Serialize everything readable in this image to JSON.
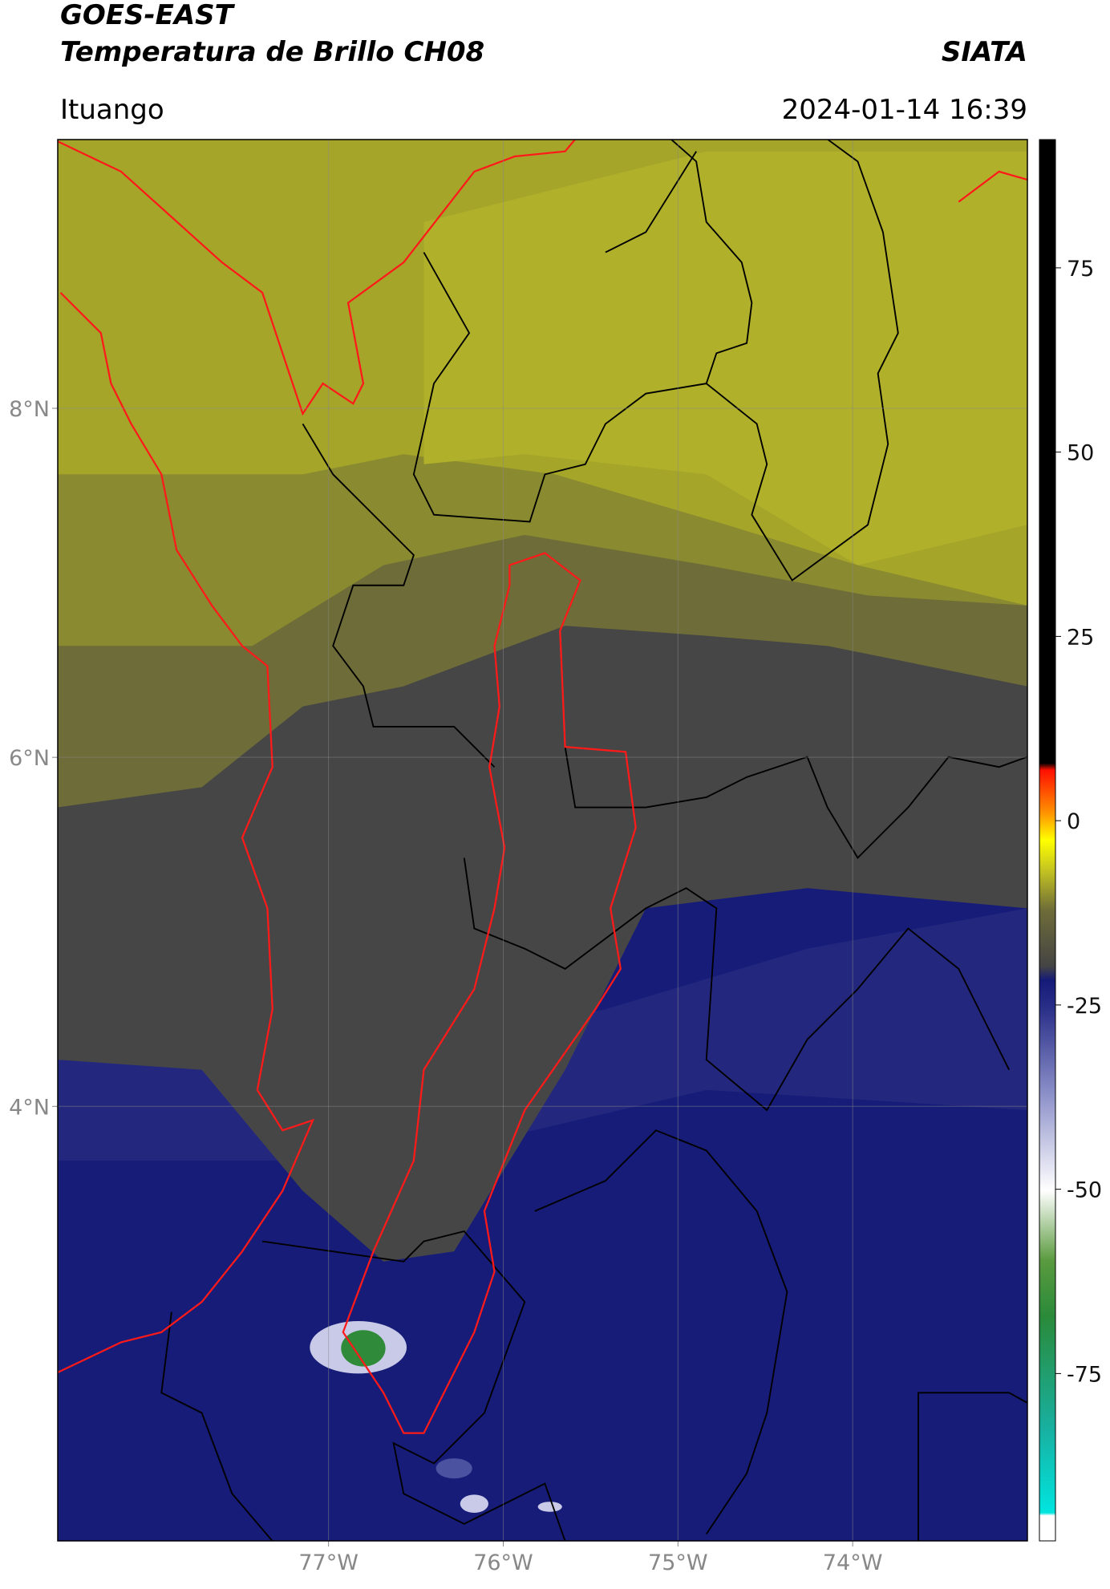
{
  "header": {
    "title": "GOES-EAST",
    "subtitle": "Temperatura de Brillo CH08",
    "source": "SIATA",
    "location": "Ituango",
    "datetime": "2024-01-14 16:39"
  },
  "map": {
    "xlim": [
      -78.55,
      -73.0
    ],
    "ylim": [
      1.51,
      9.54
    ],
    "xticks": [
      {
        "value": -77,
        "label": "77°W"
      },
      {
        "value": -76,
        "label": "76°W"
      },
      {
        "value": -75,
        "label": "75°W"
      },
      {
        "value": -74,
        "label": "74°W"
      }
    ],
    "yticks": [
      {
        "value": 8,
        "label": "8°N"
      },
      {
        "value": 6,
        "label": "6°N"
      },
      {
        "value": 4,
        "label": "4°N"
      }
    ],
    "grid": true
  },
  "colorbar": {
    "limits": [
      -97.7,
      92.4
    ],
    "ticks": [
      75,
      50,
      25,
      0,
      -25,
      -50,
      -75
    ]
  }
}
